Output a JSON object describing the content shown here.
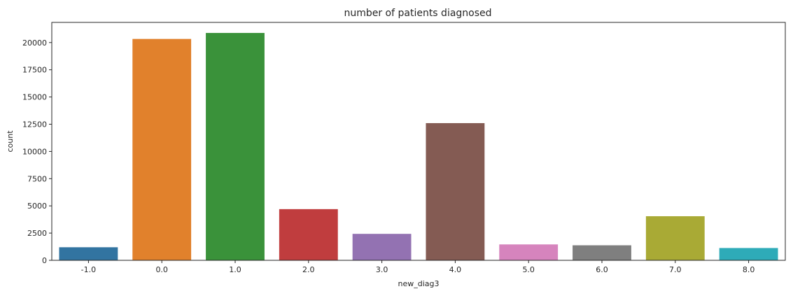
{
  "chart_data": {
    "type": "bar",
    "title": "number of patients diagnosed",
    "xlabel": "new_diag3",
    "ylabel": "count",
    "categories": [
      "-1.0",
      "0.0",
      "1.0",
      "2.0",
      "3.0",
      "4.0",
      "5.0",
      "6.0",
      "7.0",
      "8.0"
    ],
    "values": [
      1200,
      20330,
      20880,
      4700,
      2430,
      12600,
      1460,
      1380,
      4050,
      1130
    ],
    "colors": [
      "#3274a1",
      "#e1812c",
      "#3a923a",
      "#c03d3e",
      "#9372b2",
      "#845b53",
      "#d684bd",
      "#7f7f7f",
      "#a9aa35",
      "#2eabb8"
    ],
    "ylim": [
      0,
      21850
    ],
    "yticks": [
      0,
      2500,
      5000,
      7500,
      10000,
      12500,
      15000,
      17500,
      20000
    ],
    "ytick_labels": [
      "0",
      "2500",
      "5000",
      "7500",
      "10000",
      "12500",
      "15000",
      "17500",
      "20000"
    ],
    "grid": false,
    "legend": "none"
  }
}
